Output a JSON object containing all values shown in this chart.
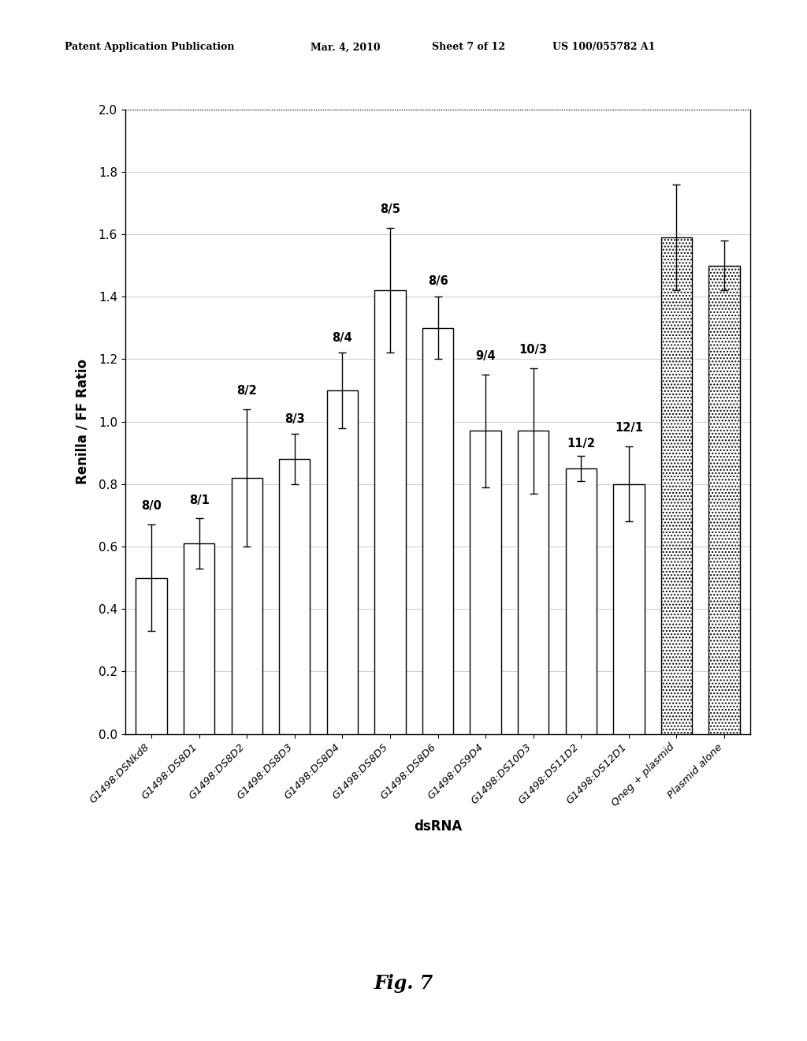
{
  "categories": [
    "G1498:DSNkd8",
    "G1498:DS8D1",
    "G1498:DS8D2",
    "G1498:DS8D3",
    "G1498:DS8D4",
    "G1498:DS8D5",
    "G1498:DS8D6",
    "G1498:DS9D4",
    "G1498:DS10D3",
    "G1498:DS11D2",
    "G1498:DS12D1",
    "Qneg + plasmid",
    "Plasmid alone"
  ],
  "values": [
    0.5,
    0.61,
    0.82,
    0.88,
    1.1,
    1.42,
    1.3,
    0.97,
    0.97,
    0.85,
    0.8,
    1.59,
    1.5
  ],
  "errors": [
    0.17,
    0.08,
    0.22,
    0.08,
    0.12,
    0.2,
    0.1,
    0.18,
    0.2,
    0.04,
    0.12,
    0.17,
    0.08
  ],
  "labels": [
    "8/0",
    "8/1",
    "8/2",
    "8/3",
    "8/4",
    "8/5",
    "8/6",
    "9/4",
    "10/3",
    "11/2",
    "12/1",
    "",
    ""
  ],
  "bar_colors": [
    "white",
    "white",
    "white",
    "white",
    "white",
    "white",
    "white",
    "white",
    "white",
    "white",
    "white",
    "dotted",
    "dotted"
  ],
  "ylabel": "Renilla / FF Ratio",
  "xlabel": "dsRNA",
  "ylim": [
    0.0,
    2.0
  ],
  "yticks": [
    0.0,
    0.2,
    0.4,
    0.6,
    0.8,
    1.0,
    1.2,
    1.4,
    1.6,
    1.8,
    2.0
  ],
  "figsize": [
    10.24,
    13.2
  ],
  "dpi": 100,
  "bar_width": 0.65,
  "header1": "Patent Application Publication",
  "header2": "Mar. 4, 2010",
  "header3": "Sheet 7 of 12",
  "header4": "US 100/055782 A1",
  "fig_label": "Fig. 7"
}
